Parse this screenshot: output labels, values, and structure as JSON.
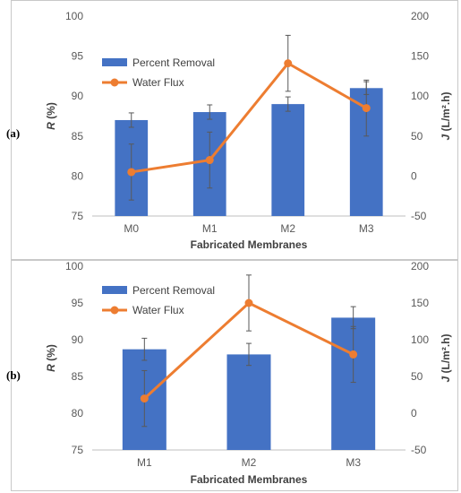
{
  "panels": [
    {
      "label": "(a)"
    },
    {
      "label": "(b)"
    }
  ],
  "colors": {
    "bar": "#4472C4",
    "line": "#ED7D31",
    "error": "#595959",
    "grid": "#d9d9d9"
  },
  "chart_data": [
    {
      "type": "bar",
      "title": "",
      "categories": [
        "M0",
        "M1",
        "M2",
        "M3"
      ],
      "xlabel": "Fabricated Membranes",
      "ylabel": {
        "italic": "R",
        "rest": " (%)"
      },
      "y2label": {
        "italic": "J",
        "rest": " (L/m².h)"
      },
      "ylim": [
        75,
        100
      ],
      "yticks": [
        75,
        80,
        85,
        90,
        95,
        100
      ],
      "y2lim": [
        -50,
        200
      ],
      "y2ticks": [
        -50,
        0,
        50,
        100,
        150,
        200
      ],
      "grid": false,
      "legend": "upper-left",
      "series": [
        {
          "name": "Percent Removal",
          "type": "bar",
          "axis": "left",
          "values": [
            87,
            88,
            89,
            91
          ],
          "error": [
            0.9,
            0.9,
            0.9,
            0.8
          ]
        },
        {
          "name": "Water Flux",
          "type": "line",
          "axis": "right",
          "values": [
            5,
            20,
            141,
            85
          ],
          "error": [
            35,
            35,
            35,
            35
          ]
        }
      ]
    },
    {
      "type": "bar",
      "title": "",
      "categories": [
        "M1",
        "M2",
        "M3"
      ],
      "xlabel": "Fabricated Membranes",
      "ylabel": {
        "italic": "R",
        "rest": " (%)"
      },
      "y2label": {
        "italic": "J",
        "rest": " (L/m².h)"
      },
      "ylim": [
        75,
        100
      ],
      "yticks": [
        75,
        80,
        85,
        90,
        95,
        100
      ],
      "y2lim": [
        -50,
        200
      ],
      "y2ticks": [
        -50,
        0,
        50,
        100,
        150,
        200
      ],
      "grid": false,
      "legend": "upper-left",
      "series": [
        {
          "name": "Percent Removal",
          "type": "bar",
          "axis": "left",
          "values": [
            88.7,
            88,
            93
          ],
          "error": [
            1.5,
            1.5,
            1.5
          ]
        },
        {
          "name": "Water Flux",
          "type": "line",
          "axis": "right",
          "values": [
            20,
            150,
            80
          ],
          "error": [
            38,
            38,
            38
          ]
        }
      ]
    }
  ]
}
